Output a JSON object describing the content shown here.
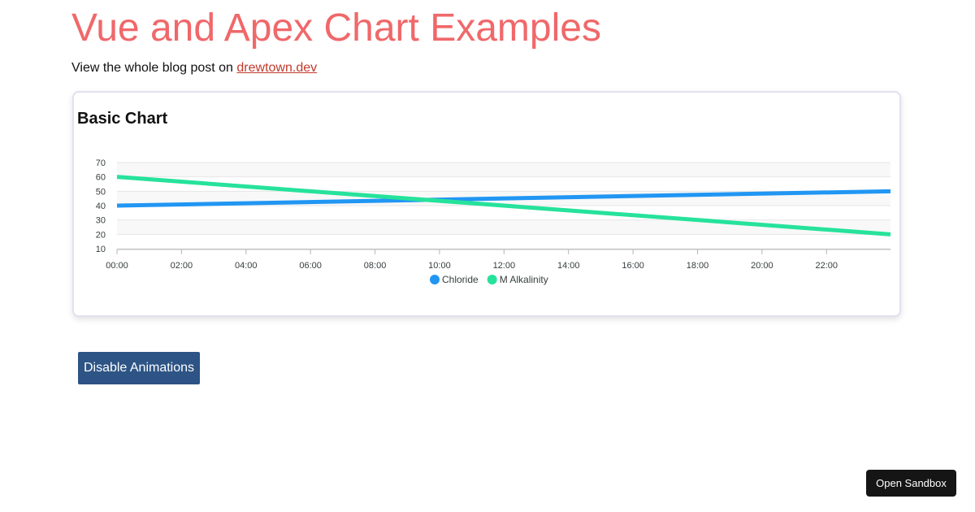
{
  "page": {
    "title": "Vue and Apex Chart Examples",
    "title_color": "#f0686a",
    "intro_text": "View the whole blog post on ",
    "intro_link": "drewtown.dev",
    "link_color": "#c0392b"
  },
  "card": {
    "title": "Basic Chart"
  },
  "chart_data": {
    "type": "line",
    "title": "Basic Chart",
    "x": [
      "00:00",
      "23:59"
    ],
    "x_tick_labels": [
      "00:00",
      "02:00",
      "04:00",
      "06:00",
      "08:00",
      "10:00",
      "12:00",
      "14:00",
      "16:00",
      "18:00",
      "20:00",
      "22:00"
    ],
    "y_tick_labels": [
      "10",
      "20",
      "30",
      "40",
      "50",
      "60",
      "70"
    ],
    "ylim": [
      10,
      70
    ],
    "grid": true,
    "legend_position": "bottom-center",
    "series": [
      {
        "name": "Chloride",
        "color": "#2196f3",
        "values": [
          40,
          50
        ]
      },
      {
        "name": "M Alkalinity",
        "color": "#26e29b",
        "values": [
          60,
          20
        ]
      }
    ]
  },
  "buttons": {
    "disable_animations": "Disable Animations",
    "disable_animations_color": "#2d5485",
    "open_sandbox": "Open Sandbox",
    "open_sandbox_color": "#151515"
  }
}
